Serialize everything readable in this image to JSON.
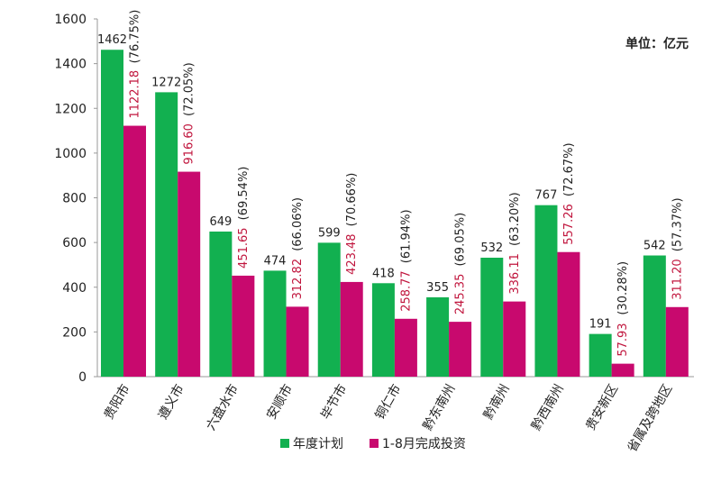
{
  "chart_data": {
    "type": "bar",
    "unit_label": "单位：亿元",
    "categories": [
      "贵阳市",
      "遵义市",
      "六盘水市",
      "安顺市",
      "毕节市",
      "铜仁市",
      "黔东南州",
      "黔南州",
      "黔西南州",
      "贵安新区",
      "省属及跨地区"
    ],
    "series": [
      {
        "name": "年度计划",
        "color": "#12b050",
        "values": [
          1462,
          1272,
          649,
          474,
          599,
          418,
          355,
          532,
          767,
          191,
          542
        ]
      },
      {
        "name": "1-8月完成投资",
        "color": "#c8096e",
        "values": [
          1122.18,
          916.6,
          451.65,
          312.82,
          423.48,
          258.77,
          245.35,
          336.11,
          557.26,
          57.93,
          311.2
        ]
      }
    ],
    "value_labels": [
      "1462",
      "1272",
      "649",
      "474",
      "599",
      "418",
      "355",
      "532",
      "767",
      "191",
      "542"
    ],
    "done_labels": [
      "1122.18",
      "916.60",
      "451.65",
      "312.82",
      "423.48",
      "258.77",
      "245.35",
      "336.11",
      "557.26",
      "57.93",
      "311.20"
    ],
    "pct_labels": [
      "(76.75%)",
      "(72.05%)",
      "(69.54%)",
      "(66.06%)",
      "(70.66%)",
      "(61.94%)",
      "(69.05%)",
      "(63.20%)",
      "(72.67%)",
      "(30.28%)",
      "(57.37%)"
    ],
    "yticks": [
      "0",
      "200",
      "400",
      "600",
      "800",
      "1000",
      "1200",
      "1400",
      "1600"
    ],
    "ylim": [
      0,
      1600
    ],
    "grid": false,
    "legend_position": "bottom"
  }
}
